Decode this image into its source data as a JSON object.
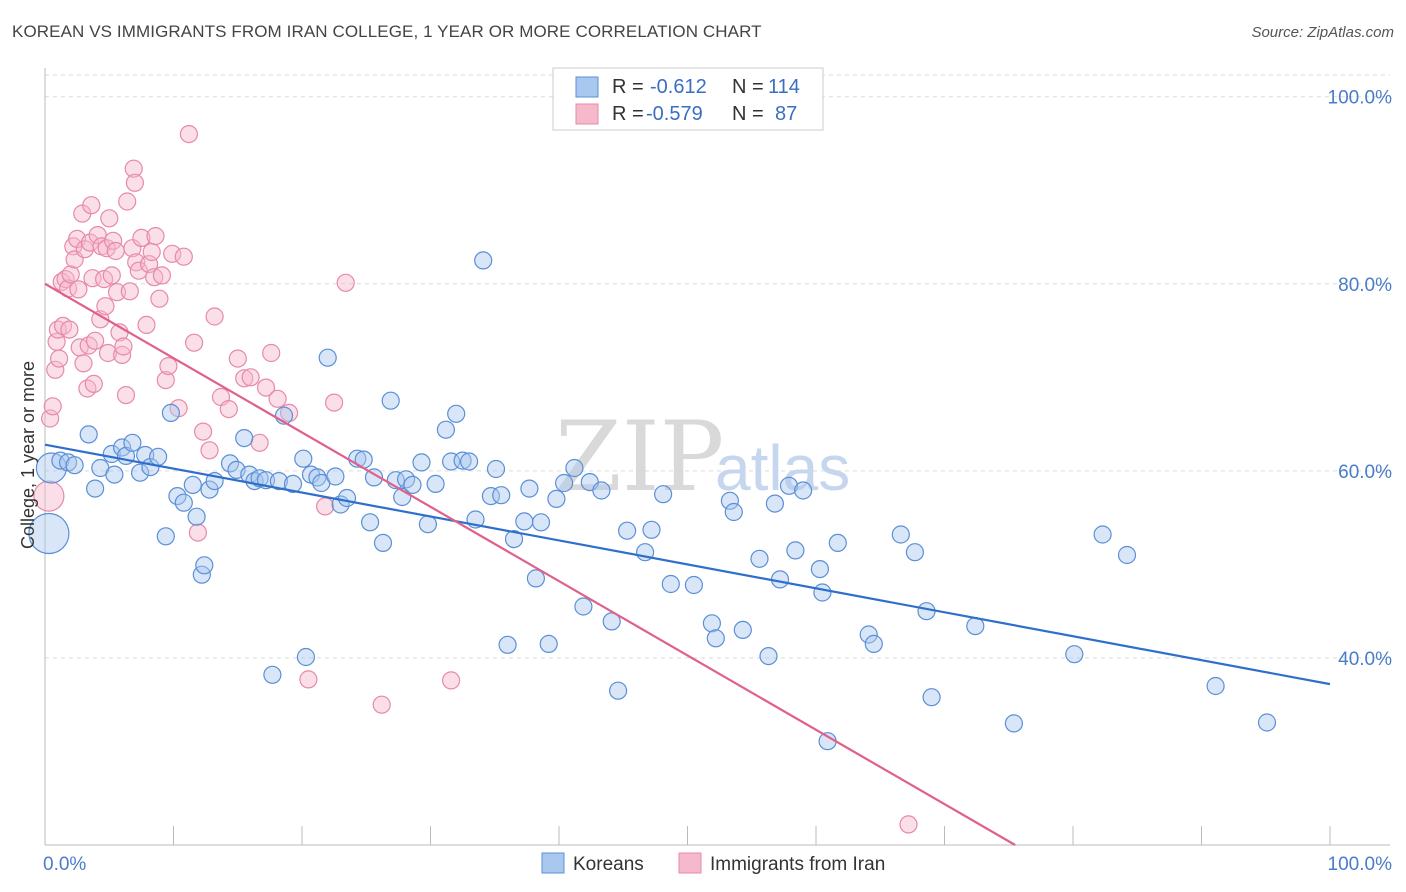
{
  "header": {
    "title": "KOREAN VS IMMIGRANTS FROM IRAN COLLEGE, 1 YEAR OR MORE CORRELATION CHART",
    "source": "Source: ZipAtlas.com"
  },
  "watermark": {
    "zip": "ZIP",
    "atlas": "atlas"
  },
  "legend": {
    "rows": [
      {
        "r_label": "R =",
        "r_value": "-0.612",
        "n_label": "N =",
        "n_value": "114"
      },
      {
        "r_label": "R =",
        "r_value": "-0.579",
        "n_label": "N =",
        "n_value": "87"
      }
    ]
  },
  "colors": {
    "koreans_fill": "#a9c8f0",
    "koreans_stroke": "#5b8fd6",
    "koreans_line": "#2f6fcc",
    "iran_fill": "#f6b8cb",
    "iran_stroke": "#e68aa8",
    "iran_line": "#e0608a",
    "tick_text": "#4a7cc9",
    "grid": "#d9d9d9"
  },
  "chart_data": {
    "type": "scatter",
    "xlabel": "",
    "ylabel": "College, 1 year or more",
    "xlim": [
      0,
      100
    ],
    "ylim": [
      20,
      102
    ],
    "x_tick_labels": [
      "0.0%",
      "100.0%"
    ],
    "y_ticks": [
      40,
      60,
      80,
      100
    ],
    "y_tick_labels": [
      "40.0%",
      "60.0%",
      "80.0%",
      "100.0%"
    ],
    "grid": true,
    "legend_position": "bottom",
    "series": [
      {
        "name": "Koreans",
        "r": -0.612,
        "n": 114,
        "trend": {
          "x": [
            0,
            100
          ],
          "y": [
            62.8,
            37.2
          ]
        },
        "points": [
          [
            0.3,
            53.3,
            3
          ],
          [
            0.5,
            60.3,
            2
          ],
          [
            1.2,
            61.1,
            1
          ],
          [
            1.8,
            60.9,
            1
          ],
          [
            2.3,
            60.6,
            1
          ],
          [
            3.4,
            63.9,
            1
          ],
          [
            3.9,
            58.1,
            1
          ],
          [
            4.3,
            60.3,
            1
          ],
          [
            5.2,
            61.8,
            1
          ],
          [
            5.4,
            59.6,
            1
          ],
          [
            6.0,
            62.5,
            1
          ],
          [
            6.3,
            61.6,
            1
          ],
          [
            6.8,
            63.0,
            1
          ],
          [
            7.4,
            59.8,
            1
          ],
          [
            7.8,
            61.7,
            1
          ],
          [
            8.2,
            60.4,
            1
          ],
          [
            8.8,
            61.5,
            1
          ],
          [
            9.4,
            53.0,
            1
          ],
          [
            9.8,
            66.2,
            1
          ],
          [
            10.3,
            57.3,
            1
          ],
          [
            10.8,
            56.6,
            1
          ],
          [
            11.5,
            58.5,
            1
          ],
          [
            11.8,
            55.1,
            1
          ],
          [
            12.2,
            48.9,
            1
          ],
          [
            12.4,
            49.9,
            1
          ],
          [
            12.8,
            58.0,
            1
          ],
          [
            13.2,
            58.9,
            1
          ],
          [
            14.4,
            60.8,
            1
          ],
          [
            14.9,
            60.1,
            1
          ],
          [
            15.5,
            63.5,
            1
          ],
          [
            15.9,
            59.6,
            1
          ],
          [
            16.3,
            58.9,
            1
          ],
          [
            16.7,
            59.2,
            1
          ],
          [
            17.2,
            59.0,
            1
          ],
          [
            17.7,
            38.2,
            1
          ],
          [
            18.2,
            58.9,
            1
          ],
          [
            18.6,
            65.9,
            1
          ],
          [
            19.3,
            58.6,
            1
          ],
          [
            20.1,
            61.3,
            1
          ],
          [
            20.3,
            40.1,
            1
          ],
          [
            20.7,
            59.6,
            1
          ],
          [
            21.2,
            59.3,
            1
          ],
          [
            21.5,
            58.7,
            1
          ],
          [
            22.0,
            72.1,
            1
          ],
          [
            22.6,
            59.4,
            1
          ],
          [
            23.0,
            56.4,
            1
          ],
          [
            23.5,
            57.1,
            1
          ],
          [
            24.3,
            61.3,
            1
          ],
          [
            24.8,
            61.2,
            1
          ],
          [
            25.3,
            54.5,
            1
          ],
          [
            25.6,
            59.3,
            1
          ],
          [
            26.3,
            52.3,
            1
          ],
          [
            26.9,
            67.5,
            1
          ],
          [
            27.3,
            59.0,
            1
          ],
          [
            27.8,
            57.2,
            1
          ],
          [
            28.1,
            59.1,
            1
          ],
          [
            28.6,
            58.5,
            1
          ],
          [
            29.3,
            60.9,
            1
          ],
          [
            29.8,
            54.3,
            1
          ],
          [
            30.4,
            58.6,
            1
          ],
          [
            31.2,
            64.4,
            1
          ],
          [
            31.6,
            61.0,
            1
          ],
          [
            32.0,
            66.1,
            1
          ],
          [
            32.5,
            61.1,
            1
          ],
          [
            33.0,
            61.0,
            1
          ],
          [
            33.5,
            54.8,
            1
          ],
          [
            34.1,
            82.5,
            1
          ],
          [
            34.7,
            57.3,
            1
          ],
          [
            35.1,
            60.2,
            1
          ],
          [
            35.5,
            57.4,
            1
          ],
          [
            36.0,
            41.4,
            1
          ],
          [
            36.5,
            52.7,
            1
          ],
          [
            37.3,
            54.6,
            1
          ],
          [
            37.7,
            58.1,
            1
          ],
          [
            38.2,
            48.5,
            1
          ],
          [
            38.6,
            54.5,
            1
          ],
          [
            39.2,
            41.5,
            1
          ],
          [
            39.8,
            57.0,
            1
          ],
          [
            40.4,
            58.7,
            1
          ],
          [
            41.2,
            60.3,
            1
          ],
          [
            41.9,
            45.5,
            1
          ],
          [
            42.4,
            58.8,
            1
          ],
          [
            43.3,
            57.9,
            1
          ],
          [
            44.1,
            43.9,
            1
          ],
          [
            44.6,
            36.5,
            1
          ],
          [
            45.3,
            53.6,
            1
          ],
          [
            46.7,
            51.3,
            1
          ],
          [
            47.2,
            53.7,
            1
          ],
          [
            48.1,
            57.5,
            1
          ],
          [
            48.7,
            47.9,
            1
          ],
          [
            50.5,
            47.8,
            1
          ],
          [
            51.9,
            43.7,
            1
          ],
          [
            52.2,
            42.1,
            1
          ],
          [
            53.3,
            56.8,
            1
          ],
          [
            53.6,
            55.6,
            1
          ],
          [
            54.3,
            43.0,
            1
          ],
          [
            55.6,
            50.6,
            1
          ],
          [
            56.3,
            40.2,
            1
          ],
          [
            56.8,
            56.5,
            1
          ],
          [
            57.2,
            48.4,
            1
          ],
          [
            57.9,
            58.4,
            1
          ],
          [
            58.4,
            51.5,
            1
          ],
          [
            59.0,
            57.9,
            1
          ],
          [
            60.3,
            49.5,
            1
          ],
          [
            60.5,
            47.0,
            1
          ],
          [
            60.9,
            31.1,
            1
          ],
          [
            61.7,
            52.3,
            1
          ],
          [
            64.1,
            42.5,
            1
          ],
          [
            64.5,
            41.5,
            1
          ],
          [
            66.6,
            53.2,
            1
          ],
          [
            67.7,
            51.3,
            1
          ],
          [
            68.6,
            45.0,
            1
          ],
          [
            69.0,
            35.8,
            1
          ],
          [
            72.4,
            43.4,
            1
          ],
          [
            75.4,
            33.0,
            1
          ],
          [
            80.1,
            40.4,
            1
          ],
          [
            82.3,
            53.2,
            1
          ],
          [
            84.2,
            51.0,
            1
          ],
          [
            91.1,
            37.0,
            1
          ],
          [
            95.1,
            33.1,
            1
          ]
        ]
      },
      {
        "name": "Immigrants from Iran",
        "r": -0.579,
        "n": 87,
        "trend": {
          "x": [
            0,
            75.5
          ],
          "y": [
            80.0,
            20.0
          ]
        },
        "points": [
          [
            0.3,
            57.3,
            2
          ],
          [
            0.4,
            65.6,
            1
          ],
          [
            0.6,
            66.9,
            1
          ],
          [
            0.8,
            70.8,
            1
          ],
          [
            0.9,
            73.8,
            1
          ],
          [
            1.0,
            75.1,
            1
          ],
          [
            1.1,
            72.0,
            1
          ],
          [
            1.3,
            80.2,
            1
          ],
          [
            1.4,
            75.5,
            1
          ],
          [
            1.6,
            80.5,
            1
          ],
          [
            1.8,
            79.5,
            1
          ],
          [
            1.9,
            75.1,
            1
          ],
          [
            2.0,
            81.0,
            1
          ],
          [
            2.2,
            84.0,
            1
          ],
          [
            2.3,
            82.6,
            1
          ],
          [
            2.5,
            84.8,
            1
          ],
          [
            2.6,
            79.4,
            1
          ],
          [
            2.7,
            73.2,
            1
          ],
          [
            2.9,
            87.5,
            1
          ],
          [
            3.0,
            71.5,
            1
          ],
          [
            3.1,
            83.7,
            1
          ],
          [
            3.3,
            68.8,
            1
          ],
          [
            3.4,
            73.4,
            1
          ],
          [
            3.5,
            84.4,
            1
          ],
          [
            3.6,
            88.4,
            1
          ],
          [
            3.7,
            80.6,
            1
          ],
          [
            3.8,
            69.3,
            1
          ],
          [
            3.9,
            73.9,
            1
          ],
          [
            4.1,
            85.2,
            1
          ],
          [
            4.3,
            76.2,
            1
          ],
          [
            4.4,
            84.0,
            1
          ],
          [
            4.6,
            80.5,
            1
          ],
          [
            4.7,
            77.6,
            1
          ],
          [
            4.8,
            83.8,
            1
          ],
          [
            4.9,
            72.6,
            1
          ],
          [
            5.0,
            87.0,
            1
          ],
          [
            5.2,
            80.9,
            1
          ],
          [
            5.3,
            84.6,
            1
          ],
          [
            5.5,
            83.5,
            1
          ],
          [
            5.6,
            79.1,
            1
          ],
          [
            5.8,
            74.8,
            1
          ],
          [
            6.0,
            72.4,
            1
          ],
          [
            6.1,
            73.3,
            1
          ],
          [
            6.3,
            68.1,
            1
          ],
          [
            6.4,
            88.8,
            1
          ],
          [
            6.6,
            79.2,
            1
          ],
          [
            6.8,
            83.8,
            1
          ],
          [
            6.9,
            92.3,
            1
          ],
          [
            7.0,
            90.8,
            1
          ],
          [
            7.1,
            82.3,
            1
          ],
          [
            7.3,
            81.4,
            1
          ],
          [
            7.5,
            84.9,
            1
          ],
          [
            7.9,
            75.6,
            1
          ],
          [
            8.1,
            82.1,
            1
          ],
          [
            8.3,
            83.4,
            1
          ],
          [
            8.5,
            80.7,
            1
          ],
          [
            8.6,
            85.1,
            1
          ],
          [
            8.9,
            78.4,
            1
          ],
          [
            9.1,
            80.9,
            1
          ],
          [
            9.4,
            69.7,
            1
          ],
          [
            9.6,
            71.2,
            1
          ],
          [
            9.9,
            83.2,
            1
          ],
          [
            10.4,
            66.7,
            1
          ],
          [
            10.8,
            82.9,
            1
          ],
          [
            11.2,
            96.0,
            1
          ],
          [
            11.6,
            73.7,
            1
          ],
          [
            11.9,
            53.4,
            1
          ],
          [
            12.3,
            64.2,
            1
          ],
          [
            12.8,
            62.2,
            1
          ],
          [
            13.2,
            76.5,
            1
          ],
          [
            13.7,
            67.9,
            1
          ],
          [
            14.3,
            66.6,
            1
          ],
          [
            15.0,
            72.0,
            1
          ],
          [
            15.5,
            69.9,
            1
          ],
          [
            16.0,
            70.0,
            1
          ],
          [
            16.7,
            63.0,
            1
          ],
          [
            17.2,
            68.9,
            1
          ],
          [
            17.6,
            72.6,
            1
          ],
          [
            18.1,
            67.7,
            1
          ],
          [
            19.0,
            66.2,
            1
          ],
          [
            20.5,
            37.7,
            1
          ],
          [
            21.8,
            56.2,
            1
          ],
          [
            22.5,
            67.3,
            1
          ],
          [
            23.4,
            80.1,
            1
          ],
          [
            26.2,
            35.0,
            1
          ],
          [
            31.6,
            37.6,
            1
          ],
          [
            67.2,
            22.2,
            1
          ]
        ]
      }
    ]
  },
  "bottom_legend": {
    "items": [
      "Koreans",
      "Immigrants from Iran"
    ]
  }
}
